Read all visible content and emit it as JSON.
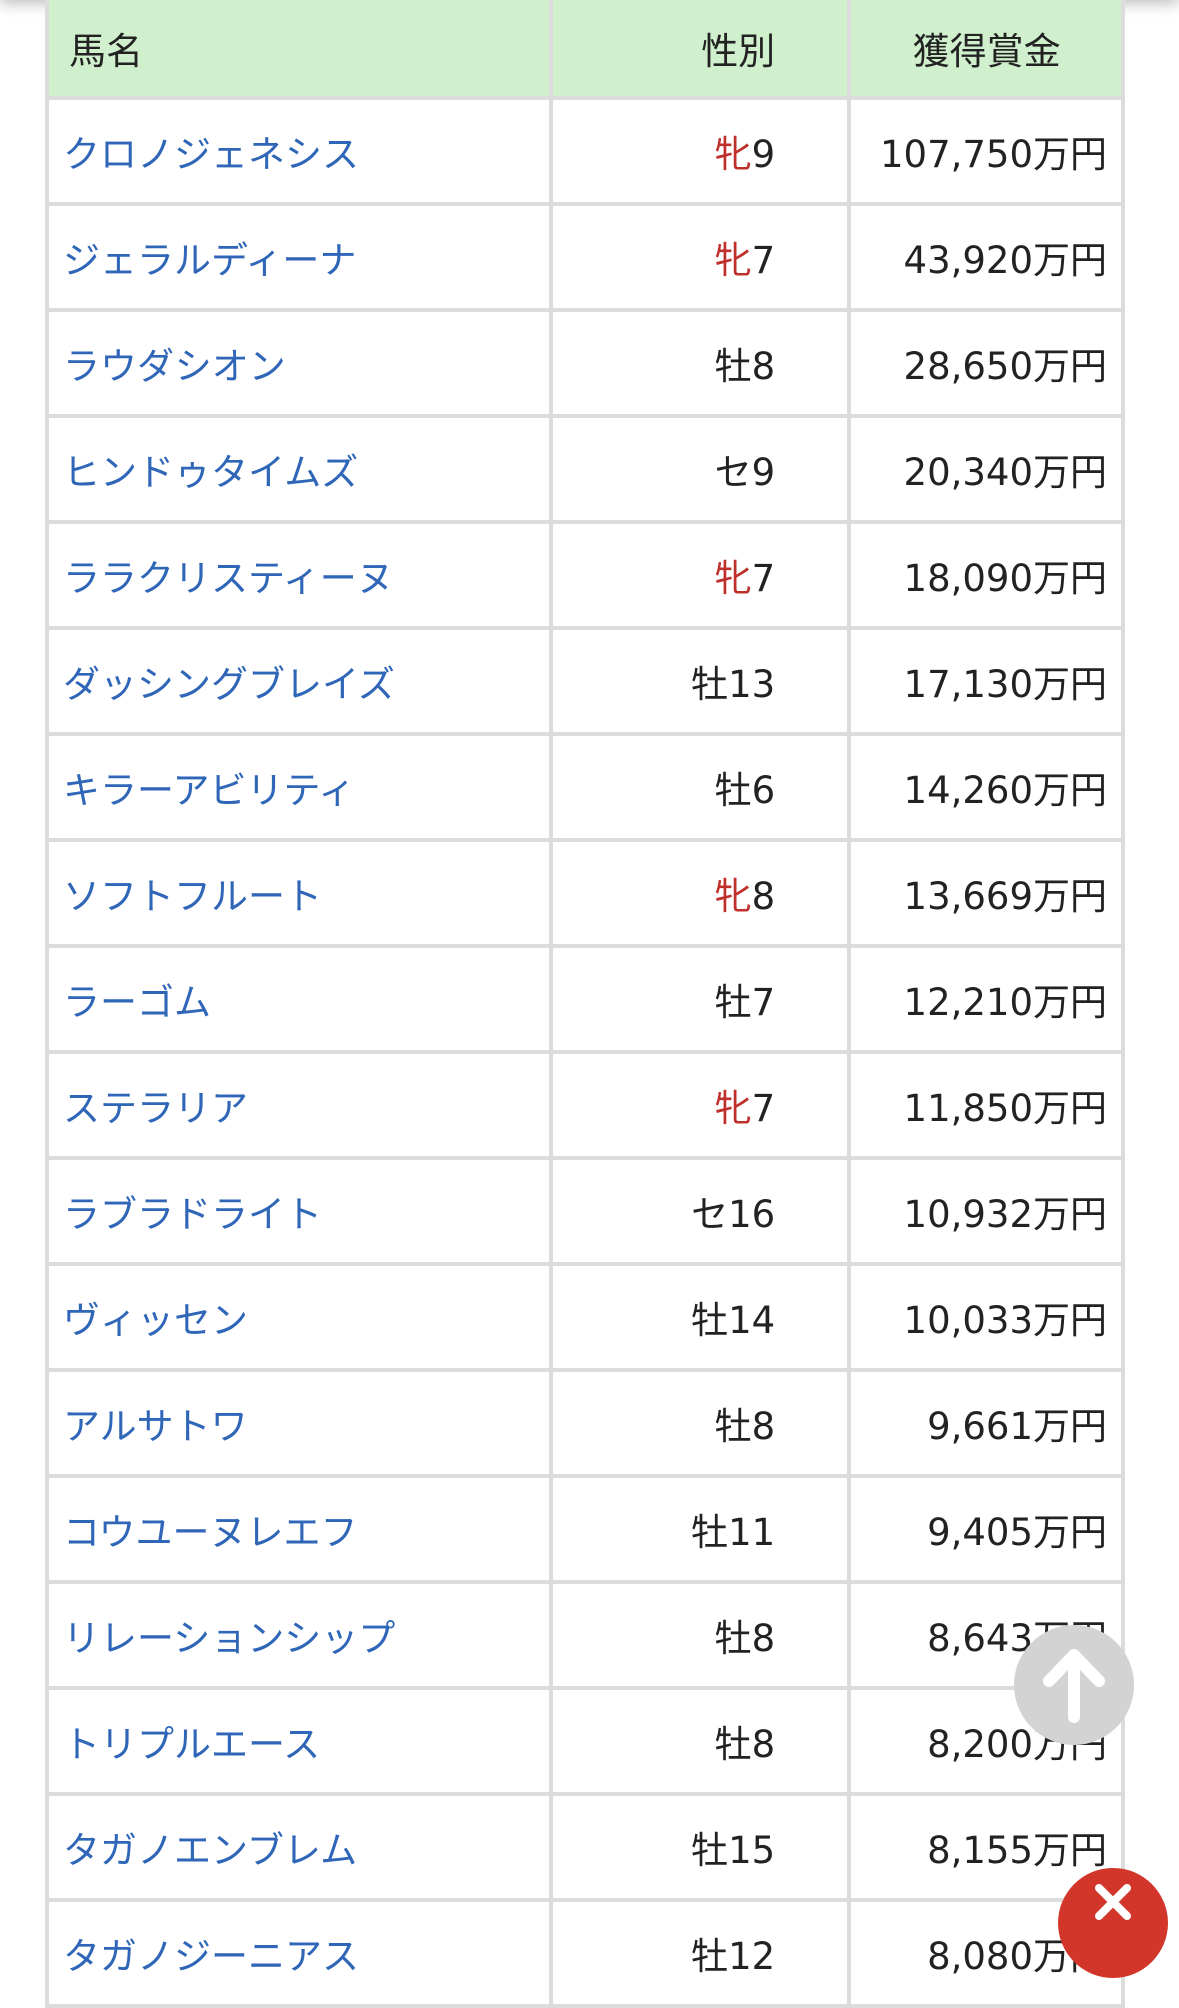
{
  "table": {
    "headers": [
      "馬名",
      "性別",
      "獲得賞金"
    ],
    "rows": [
      {
        "name": "クロノジェネシス",
        "sex": "牝",
        "age": "9",
        "prize": "107,750万円",
        "mare": true
      },
      {
        "name": "ジェラルディーナ",
        "sex": "牝",
        "age": "7",
        "prize": "43,920万円",
        "mare": true
      },
      {
        "name": "ラウダシオン",
        "sex": "牡",
        "age": "8",
        "prize": "28,650万円",
        "mare": false
      },
      {
        "name": "ヒンドゥタイムズ",
        "sex": "セ",
        "age": "9",
        "prize": "20,340万円",
        "mare": false
      },
      {
        "name": "ララクリスティーヌ",
        "sex": "牝",
        "age": "7",
        "prize": "18,090万円",
        "mare": true
      },
      {
        "name": "ダッシングブレイズ",
        "sex": "牡",
        "age": "13",
        "prize": "17,130万円",
        "mare": false
      },
      {
        "name": "キラーアビリティ",
        "sex": "牡",
        "age": "6",
        "prize": "14,260万円",
        "mare": false
      },
      {
        "name": "ソフトフルート",
        "sex": "牝",
        "age": "8",
        "prize": "13,669万円",
        "mare": true
      },
      {
        "name": "ラーゴム",
        "sex": "牡",
        "age": "7",
        "prize": "12,210万円",
        "mare": false
      },
      {
        "name": "ステラリア",
        "sex": "牝",
        "age": "7",
        "prize": "11,850万円",
        "mare": true
      },
      {
        "name": "ラブラドライト",
        "sex": "セ",
        "age": "16",
        "prize": "10,932万円",
        "mare": false
      },
      {
        "name": "ヴィッセン",
        "sex": "牡",
        "age": "14",
        "prize": "10,033万円",
        "mare": false
      },
      {
        "name": "アルサトワ",
        "sex": "牡",
        "age": "8",
        "prize": "9,661万円",
        "mare": false
      },
      {
        "name": "コウユーヌレエフ",
        "sex": "牡",
        "age": "11",
        "prize": "9,405万円",
        "mare": false
      },
      {
        "name": "リレーションシップ",
        "sex": "牡",
        "age": "8",
        "prize": "8,643万円",
        "mare": false
      },
      {
        "name": "トリプルエース",
        "sex": "牡",
        "age": "8",
        "prize": "8,200万円",
        "mare": false
      },
      {
        "name": "タガノエンブレム",
        "sex": "牡",
        "age": "15",
        "prize": "8,155万円",
        "mare": false
      },
      {
        "name": "タガノジーニアス",
        "sex": "牡",
        "age": "12",
        "prize": "8,080万円",
        "mare": false
      }
    ]
  },
  "colors": {
    "header_bg": "#d0efcc",
    "link": "#2f66b8",
    "mare": "#c0302a",
    "close": "#d2362b"
  },
  "icons": {
    "scroll_top": "arrow-up-icon",
    "close": "close-x-icon"
  }
}
